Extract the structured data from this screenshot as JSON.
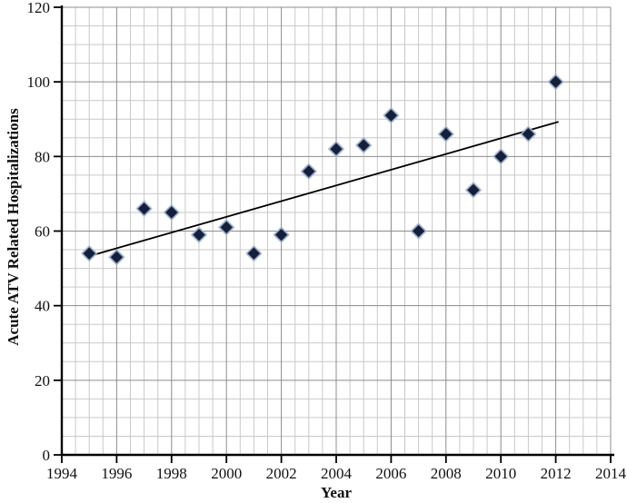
{
  "chart_data": {
    "type": "scatter",
    "title": "",
    "xlabel": "Year",
    "ylabel": "Acute ATV Related Hospitalizations",
    "x": [
      1995,
      1996,
      1997,
      1998,
      1999,
      2000,
      2001,
      2002,
      2003,
      2004,
      2005,
      2006,
      2007,
      2008,
      2009,
      2010,
      2011,
      2012
    ],
    "y": [
      54,
      53,
      66,
      65,
      59,
      61,
      54,
      59,
      76,
      82,
      83,
      91,
      60,
      86,
      71,
      80,
      86,
      100
    ],
    "xlim": [
      1994,
      2014
    ],
    "ylim": [
      0,
      120
    ],
    "x_major_ticks": [
      1994,
      1996,
      1998,
      2000,
      2002,
      2004,
      2006,
      2008,
      2010,
      2012,
      2014
    ],
    "y_major_ticks": [
      0,
      20,
      40,
      60,
      80,
      100,
      120
    ],
    "x_minor_step": 0.5,
    "y_minor_step": 5,
    "grid": "on",
    "legend": "none",
    "trendline": {
      "x1": 1995.1,
      "y1": 53.5,
      "x2": 2012.1,
      "y2": 89.3
    },
    "marker": {
      "shape": "diamond",
      "size": 16
    },
    "colors": {
      "marker_fill": "#161f3a",
      "marker_halo": "#a9bbd9",
      "major_grid": "#8c8c8c",
      "minor_grid": "#c9c9c9",
      "axis": "#000000",
      "trendline": "#000000",
      "text": "#111111"
    }
  }
}
